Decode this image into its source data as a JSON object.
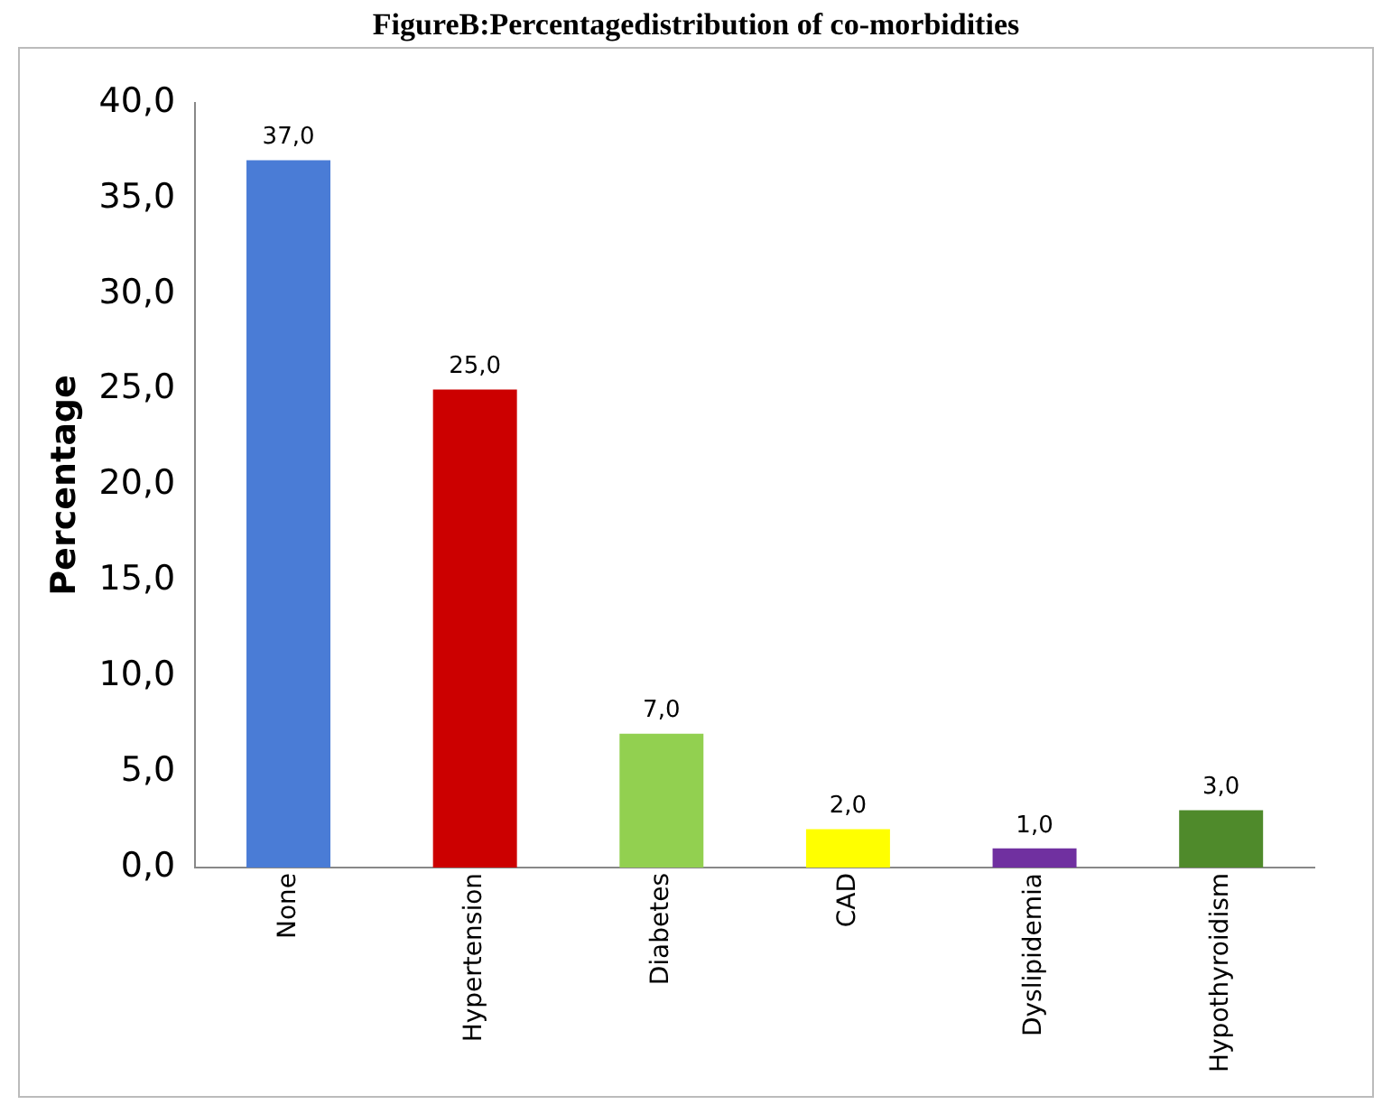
{
  "chart_data": {
    "type": "bar",
    "title": "FigureB:Percentagedistribution of co-morbidities",
    "ylabel": "Percentage",
    "categories": [
      "None",
      "Hypertension",
      "Diabetes",
      "CAD",
      "Dyslipidemia",
      "Hypothyroidism"
    ],
    "values": [
      37,
      25,
      7,
      2,
      1,
      3
    ],
    "value_labels": [
      "37,0",
      "25,0",
      "7,0",
      "2,0",
      "1,0",
      "3,0"
    ],
    "colors": [
      "#4a7cd6",
      "#cc0000",
      "#92d050",
      "#ffff00",
      "#7030a0",
      "#4f8a2b"
    ],
    "ylim": [
      0,
      40
    ],
    "yticks": [
      {
        "value": 0,
        "label": "0,0"
      },
      {
        "value": 5,
        "label": "5,0"
      },
      {
        "value": 10,
        "label": "10,0"
      },
      {
        "value": 15,
        "label": "15,0"
      },
      {
        "value": 20,
        "label": "20,0"
      },
      {
        "value": 25,
        "label": "25,0"
      },
      {
        "value": 30,
        "label": "30,0"
      },
      {
        "value": 35,
        "label": "35,0"
      },
      {
        "value": 40,
        "label": "40,0"
      }
    ],
    "grid": false,
    "legend": false
  }
}
